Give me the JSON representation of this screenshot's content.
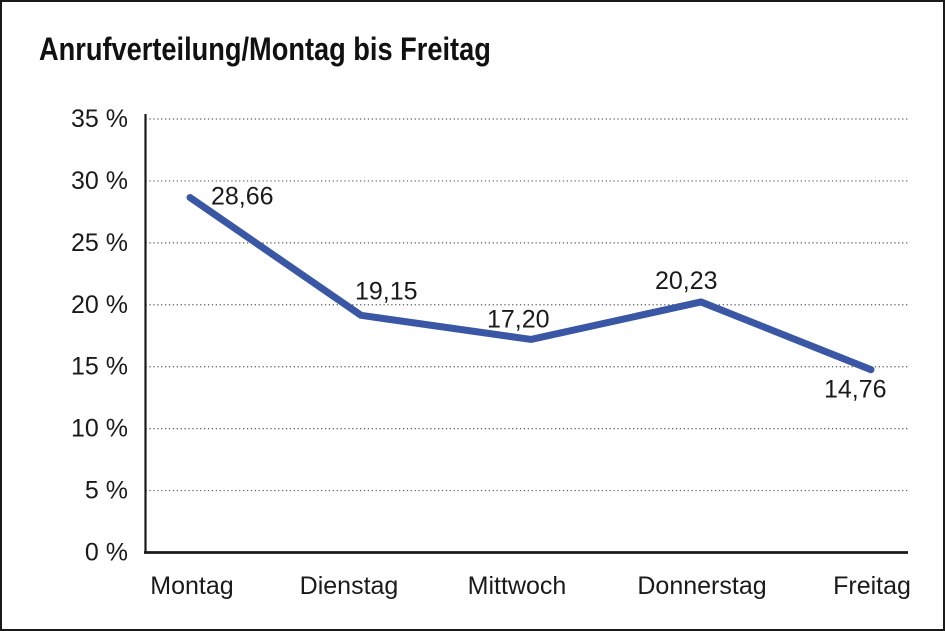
{
  "window": {
    "title": "Anrufverteilung/Montag bis Freitag"
  },
  "chart_data": {
    "type": "line",
    "title": "Anrufverteilung/Montag bis Freitag",
    "categories": [
      "Montag",
      "Dienstag",
      "Mittwoch",
      "Donnerstag",
      "Freitag"
    ],
    "series": [
      {
        "name": "Anrufverteilung",
        "values": [
          28.66,
          19.15,
          17.2,
          20.23,
          14.76
        ]
      }
    ],
    "value_labels": [
      "28,66",
      "19,15",
      "17,20",
      "20,23",
      "14,76"
    ],
    "ytick_values": [
      0,
      5,
      10,
      15,
      20,
      25,
      30,
      35
    ],
    "ytick_labels": [
      "0 %",
      "5 %",
      "10 %",
      "15 %",
      "20 %",
      "25 %",
      "30 %",
      "35 %"
    ],
    "ylim": [
      0,
      35
    ],
    "xlabel": "",
    "ylabel": "",
    "grid": "horizontal-dotted",
    "legend": "none",
    "colors": {
      "line": "#3A57A5",
      "axis": "#1a1a1a",
      "gridline": "#5f5f5f",
      "text": "#1a1a1a",
      "background": "#ffffff"
    }
  }
}
